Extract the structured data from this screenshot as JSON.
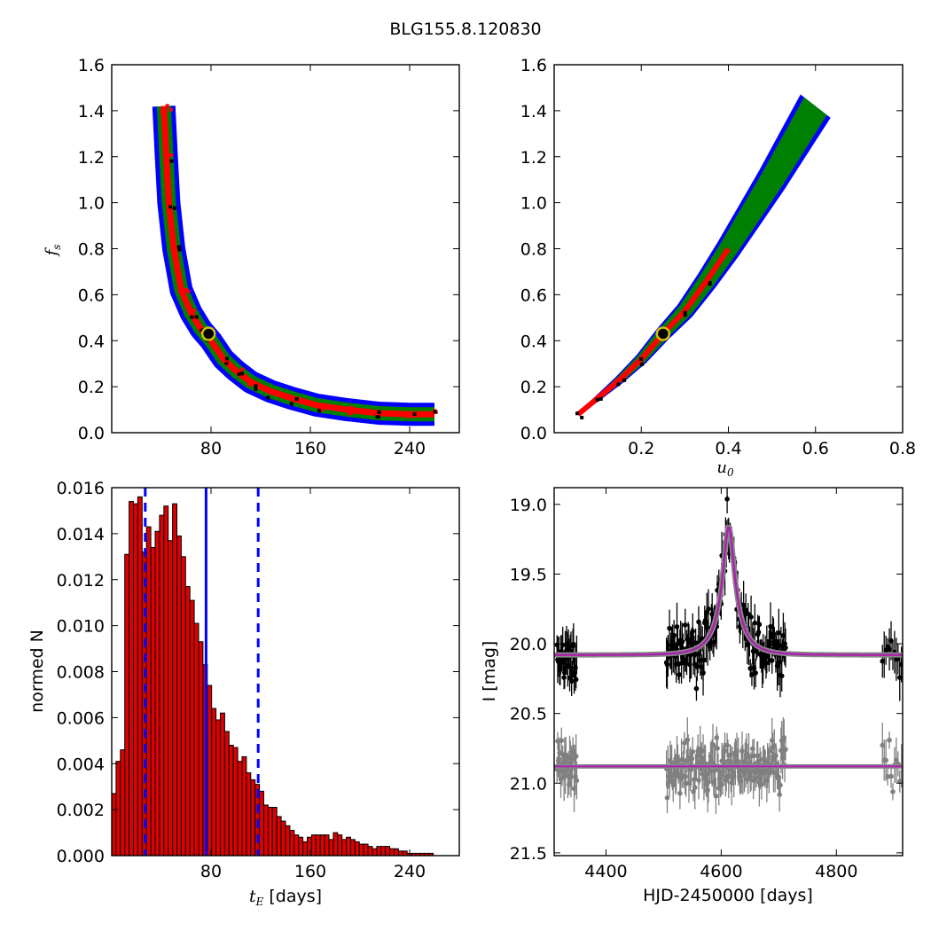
{
  "figure_title": "BLG155.8.120830",
  "chart_data": [
    {
      "panel": "top-left",
      "type": "heatmap",
      "title": "",
      "xlabel": "",
      "ylabel_math": "f",
      "ylabel_sub": "s",
      "xlim": [
        0,
        280
      ],
      "ylim": [
        0.0,
        1.6
      ],
      "xticks": [
        80,
        160,
        240
      ],
      "yticks": [
        0.0,
        0.2,
        0.4,
        0.6,
        0.8,
        1.0,
        1.2,
        1.4,
        1.6
      ],
      "colors": {
        "outer": "#0000ff",
        "middle": "#008000",
        "inner": "#ff0000",
        "core": "#000000"
      },
      "curve": [
        [
          42,
          1.42
        ],
        [
          44,
          1.2
        ],
        [
          46,
          1.0
        ],
        [
          50,
          0.8
        ],
        [
          56,
          0.62
        ],
        [
          64,
          0.52
        ],
        [
          72,
          0.45
        ],
        [
          80,
          0.4
        ],
        [
          90,
          0.32
        ],
        [
          100,
          0.27
        ],
        [
          112,
          0.22
        ],
        [
          128,
          0.18
        ],
        [
          145,
          0.15
        ],
        [
          165,
          0.12
        ],
        [
          190,
          0.1
        ],
        [
          215,
          0.085
        ],
        [
          240,
          0.08
        ],
        [
          260,
          0.08
        ]
      ],
      "best_fit": {
        "x": 78,
        "y": 0.43
      },
      "grid": false
    },
    {
      "panel": "top-right",
      "type": "heatmap",
      "title": "",
      "xlabel_math": "u",
      "xlabel_sub": "0",
      "ylabel": "",
      "xlim": [
        0.0,
        0.8
      ],
      "ylim": [
        0.0,
        1.6
      ],
      "xticks": [
        0.2,
        0.4,
        0.6,
        0.8
      ],
      "yticks": [
        0.0,
        0.2,
        0.4,
        0.6,
        0.8,
        1.0,
        1.2,
        1.4,
        1.6
      ],
      "colors": {
        "outer": "#0000ff",
        "middle": "#008000",
        "inner": "#ff0000",
        "core": "#000000"
      },
      "curve": [
        [
          0.055,
          0.08
        ],
        [
          0.1,
          0.15
        ],
        [
          0.15,
          0.23
        ],
        [
          0.2,
          0.32
        ],
        [
          0.25,
          0.43
        ],
        [
          0.3,
          0.53
        ],
        [
          0.35,
          0.66
        ],
        [
          0.4,
          0.8
        ],
        [
          0.45,
          0.95
        ],
        [
          0.5,
          1.1
        ],
        [
          0.55,
          1.26
        ],
        [
          0.6,
          1.42
        ]
      ],
      "best_fit": {
        "x": 0.25,
        "y": 0.43
      },
      "grid": false
    },
    {
      "panel": "bottom-left",
      "type": "bar",
      "title": "",
      "xlabel_math": "t",
      "xlabel_sub": "E",
      "xlabel_suffix": "[days]",
      "ylabel": "normed N",
      "xlim": [
        0,
        280
      ],
      "ylim": [
        0.0,
        0.016
      ],
      "xticks": [
        80,
        160,
        240
      ],
      "yticks": [
        0.0,
        0.002,
        0.004,
        0.006,
        0.008,
        0.01,
        0.012,
        0.014,
        0.016
      ],
      "bin_start": 0,
      "bin_width": 3.5,
      "values": [
        0.0027,
        0.0041,
        0.0046,
        0.0131,
        0.0154,
        0.0153,
        0.0156,
        0.0132,
        0.0143,
        0.0134,
        0.0141,
        0.0148,
        0.0152,
        0.0137,
        0.0153,
        0.0139,
        0.013,
        0.0117,
        0.0111,
        0.0101,
        0.0093,
        0.0083,
        0.0074,
        0.0064,
        0.0059,
        0.0062,
        0.0054,
        0.0048,
        0.0047,
        0.0041,
        0.0043,
        0.0036,
        0.0033,
        0.0031,
        0.0028,
        0.0022,
        0.0021,
        0.0021,
        0.0017,
        0.0015,
        0.0013,
        0.0011,
        0.0009,
        0.0008,
        0.0006,
        0.0008,
        0.0009,
        0.0009,
        0.0009,
        0.0009,
        0.0007,
        0.001,
        0.0009,
        0.0007,
        0.0008,
        0.0007,
        0.0006,
        0.0005,
        0.0005,
        0.0004,
        0.0003,
        0.0004,
        0.0004,
        0.0004,
        0.0003,
        0.0003,
        0.0002,
        0.0002,
        0.0001,
        0.0001,
        0.0001,
        0.0001,
        0.0001,
        0.0001,
        0.0,
        0.0,
        0.0,
        0.0,
        0.0,
        0.0
      ],
      "bar_color": "#dd0000",
      "lines": {
        "median": 76,
        "lower": 27,
        "upper": 118
      },
      "line_color": "#0000ff",
      "grid": false
    },
    {
      "panel": "bottom-right",
      "type": "scatter",
      "title": "",
      "xlabel": "HJD-2450000 [days]",
      "ylabel": "I [mag]",
      "xlim": [
        4310,
        4915
      ],
      "ylim": [
        21.52,
        18.88
      ],
      "xticks": [
        4400,
        4600,
        4800
      ],
      "yticks": [
        19.0,
        19.5,
        20.0,
        20.5,
        21.0,
        21.5
      ],
      "model": {
        "t0": 4613,
        "baseline": 20.08,
        "peak": 19.16,
        "tE": 41,
        "u0": 0.25,
        "color": "#aa22aa"
      },
      "residual_baseline": 20.88,
      "colors": {
        "data": "#000000",
        "residual": "#808080"
      },
      "grid": false
    }
  ]
}
